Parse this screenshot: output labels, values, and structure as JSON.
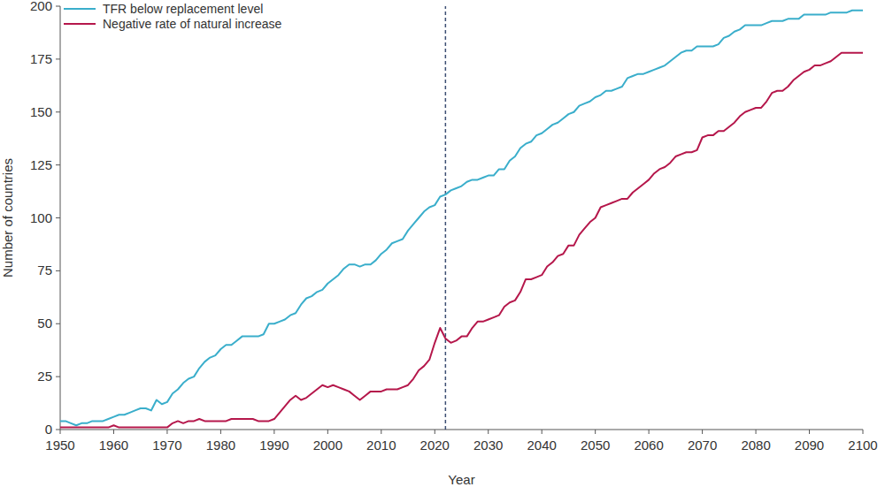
{
  "chart_data": {
    "type": "line",
    "x_label": "Year",
    "y_label": "Number of countries",
    "x": [
      1950,
      1951,
      1952,
      1953,
      1954,
      1955,
      1956,
      1957,
      1958,
      1959,
      1960,
      1961,
      1962,
      1963,
      1964,
      1965,
      1966,
      1967,
      1968,
      1969,
      1970,
      1971,
      1972,
      1973,
      1974,
      1975,
      1976,
      1977,
      1978,
      1979,
      1980,
      1981,
      1982,
      1983,
      1984,
      1985,
      1986,
      1987,
      1988,
      1989,
      1990,
      1991,
      1992,
      1993,
      1994,
      1995,
      1996,
      1997,
      1998,
      1999,
      2000,
      2001,
      2002,
      2003,
      2004,
      2005,
      2006,
      2007,
      2008,
      2009,
      2010,
      2011,
      2012,
      2013,
      2014,
      2015,
      2016,
      2017,
      2018,
      2019,
      2020,
      2021,
      2022,
      2023,
      2024,
      2025,
      2026,
      2027,
      2028,
      2029,
      2030,
      2031,
      2032,
      2033,
      2034,
      2035,
      2036,
      2037,
      2038,
      2039,
      2040,
      2041,
      2042,
      2043,
      2044,
      2045,
      2046,
      2047,
      2048,
      2049,
      2050,
      2051,
      2052,
      2053,
      2054,
      2055,
      2056,
      2057,
      2058,
      2059,
      2060,
      2061,
      2062,
      2063,
      2064,
      2065,
      2066,
      2067,
      2068,
      2069,
      2070,
      2071,
      2072,
      2073,
      2074,
      2075,
      2076,
      2077,
      2078,
      2079,
      2080,
      2081,
      2082,
      2083,
      2084,
      2085,
      2086,
      2087,
      2088,
      2089,
      2090,
      2091,
      2092,
      2093,
      2094,
      2095,
      2096,
      2097,
      2098,
      2099,
      2100
    ],
    "series": [
      {
        "name": "TFR below replacement level",
        "color": "#3aaecb",
        "values": [
          4,
          4,
          3,
          2,
          3,
          3,
          4,
          4,
          4,
          5,
          6,
          7,
          7,
          8,
          9,
          10,
          10,
          9,
          14,
          12,
          13,
          17,
          19,
          22,
          24,
          25,
          29,
          32,
          34,
          35,
          38,
          40,
          40,
          42,
          44,
          44,
          44,
          44,
          45,
          50,
          50,
          51,
          52,
          54,
          55,
          59,
          62,
          63,
          65,
          66,
          69,
          71,
          73,
          76,
          78,
          78,
          77,
          78,
          78,
          80,
          83,
          85,
          88,
          89,
          90,
          94,
          97,
          100,
          103,
          105,
          106,
          110,
          111,
          113,
          114,
          115,
          117,
          118,
          118,
          119,
          120,
          120,
          123,
          123,
          127,
          129,
          133,
          135,
          136,
          139,
          140,
          142,
          144,
          145,
          147,
          149,
          150,
          153,
          154,
          155,
          157,
          158,
          160,
          160,
          161,
          162,
          166,
          167,
          168,
          168,
          169,
          170,
          171,
          172,
          174,
          176,
          178,
          179,
          179,
          181,
          181,
          181,
          181,
          182,
          185,
          186,
          188,
          189,
          191,
          191,
          191,
          191,
          192,
          193,
          193,
          193,
          194,
          194,
          194,
          196,
          196,
          196,
          196,
          196,
          197,
          197,
          197,
          197,
          198,
          198,
          198
        ]
      },
      {
        "name": "Negative rate of natural increase",
        "color": "#b5174b",
        "values": [
          1,
          1,
          1,
          1,
          1,
          1,
          1,
          1,
          1,
          1,
          2,
          1,
          1,
          1,
          1,
          1,
          1,
          1,
          1,
          1,
          1,
          3,
          4,
          3,
          4,
          4,
          5,
          4,
          4,
          4,
          4,
          4,
          5,
          5,
          5,
          5,
          5,
          4,
          4,
          4,
          5,
          8,
          11,
          14,
          16,
          14,
          15,
          17,
          19,
          21,
          20,
          21,
          20,
          19,
          18,
          16,
          14,
          16,
          18,
          18,
          18,
          19,
          19,
          19,
          20,
          21,
          24,
          28,
          30,
          33,
          41,
          48,
          43,
          41,
          42,
          44,
          44,
          48,
          51,
          51,
          52,
          53,
          54,
          58,
          60,
          61,
          65,
          71,
          71,
          72,
          73,
          77,
          79,
          82,
          83,
          87,
          87,
          92,
          95,
          98,
          100,
          105,
          106,
          107,
          108,
          109,
          109,
          112,
          114,
          116,
          118,
          121,
          123,
          124,
          126,
          129,
          130,
          131,
          131,
          132,
          138,
          139,
          139,
          141,
          141,
          143,
          145,
          148,
          150,
          151,
          152,
          152,
          155,
          159,
          160,
          160,
          162,
          165,
          167,
          169,
          170,
          172,
          172,
          173,
          174,
          176,
          178,
          178,
          178,
          178,
          178
        ]
      }
    ],
    "xlim": [
      1950,
      2100
    ],
    "xticks": [
      1950,
      1960,
      1970,
      1980,
      1990,
      2000,
      2010,
      2020,
      2030,
      2040,
      2050,
      2060,
      2070,
      2080,
      2090,
      2100
    ],
    "ylim": [
      0,
      200
    ],
    "yticks": [
      0,
      25,
      50,
      75,
      100,
      125,
      150,
      175,
      200
    ],
    "reference_x": 2022,
    "legend": "top-left",
    "grid": false
  }
}
